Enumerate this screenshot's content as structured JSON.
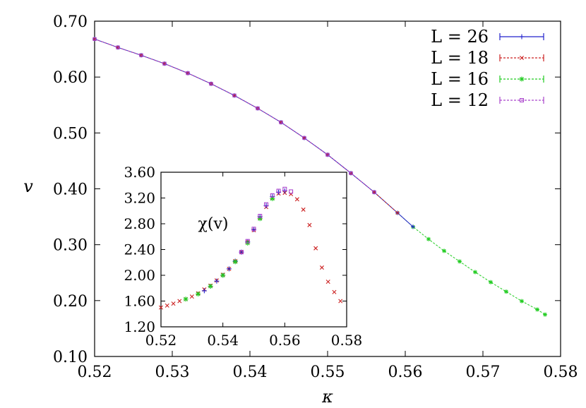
{
  "chart_data": [
    {
      "type": "line",
      "xlabel": "κ",
      "ylabel": "v",
      "xlim": [
        0.52,
        0.58
      ],
      "ylim": [
        0.1,
        0.7
      ],
      "xticks": [
        "0.52",
        "0.53",
        "0.54",
        "0.55",
        "0.56",
        "0.57",
        "0.58"
      ],
      "yticks": [
        "0.10",
        "0.20",
        "0.30",
        "0.40",
        "0.50",
        "0.60",
        "0.70"
      ],
      "grid": false,
      "legend": "top-right",
      "series": [
        {
          "name": "L = 26",
          "color": "#2222cc",
          "marker": "plus",
          "x": [
            0.52,
            0.523,
            0.526,
            0.529,
            0.532,
            0.535,
            0.538,
            0.541,
            0.544,
            0.547,
            0.55,
            0.553,
            0.556,
            0.559,
            0.561
          ],
          "y": [
            0.668,
            0.653,
            0.639,
            0.624,
            0.607,
            0.588,
            0.567,
            0.544,
            0.519,
            0.491,
            0.461,
            0.428,
            0.394,
            0.357,
            0.332
          ]
        },
        {
          "name": "L = 18",
          "color": "#cc2222",
          "marker": "cross",
          "x": [
            0.52,
            0.523,
            0.526,
            0.529,
            0.532,
            0.535,
            0.538,
            0.541,
            0.544,
            0.547,
            0.55,
            0.553,
            0.556,
            0.559
          ],
          "y": [
            0.668,
            0.653,
            0.639,
            0.624,
            0.607,
            0.588,
            0.567,
            0.544,
            0.519,
            0.491,
            0.461,
            0.428,
            0.394,
            0.357
          ]
        },
        {
          "name": "L = 16",
          "color": "#22cc22",
          "marker": "star",
          "x": [
            0.52,
            0.523,
            0.526,
            0.529,
            0.532,
            0.535,
            0.538,
            0.541,
            0.544,
            0.547,
            0.55,
            0.553,
            0.556,
            0.559,
            0.561,
            0.563,
            0.565,
            0.567,
            0.569,
            0.571,
            0.573,
            0.575,
            0.577,
            0.578
          ],
          "y": [
            0.668,
            0.653,
            0.639,
            0.624,
            0.607,
            0.588,
            0.567,
            0.544,
            0.519,
            0.491,
            0.461,
            0.428,
            0.394,
            0.357,
            0.332,
            0.31,
            0.289,
            0.27,
            0.251,
            0.233,
            0.216,
            0.199,
            0.184,
            0.175
          ]
        },
        {
          "name": "L = 12",
          "color": "#aa44cc",
          "marker": "square",
          "x": [
            0.52,
            0.523,
            0.526,
            0.529,
            0.532,
            0.535,
            0.538,
            0.541,
            0.544,
            0.547,
            0.55,
            0.553,
            0.556
          ],
          "y": [
            0.668,
            0.653,
            0.639,
            0.624,
            0.607,
            0.588,
            0.567,
            0.544,
            0.519,
            0.491,
            0.461,
            0.428,
            0.394
          ]
        }
      ]
    },
    {
      "type": "scatter",
      "ylabel": "χ(v)",
      "xlim": [
        0.52,
        0.58
      ],
      "ylim": [
        1.2,
        3.6
      ],
      "xticks": [
        "0.52",
        "0.54",
        "0.56",
        "0.58"
      ],
      "yticks": [
        "1.20",
        "1.60",
        "2.00",
        "2.40",
        "2.80",
        "3.20",
        "3.60"
      ],
      "series": [
        {
          "name": "L = 18",
          "color": "#cc2222",
          "marker": "cross",
          "x": [
            0.52,
            0.522,
            0.524,
            0.526,
            0.528,
            0.53,
            0.532,
            0.534,
            0.536,
            0.538,
            0.54,
            0.542,
            0.544,
            0.546,
            0.548,
            0.55,
            0.552,
            0.554,
            0.556,
            0.558,
            0.56,
            0.562,
            0.564,
            0.566,
            0.568,
            0.57,
            0.572,
            0.574,
            0.576,
            0.578
          ],
          "y": [
            1.5,
            1.53,
            1.56,
            1.6,
            1.63,
            1.67,
            1.72,
            1.78,
            1.84,
            1.92,
            2.01,
            2.1,
            2.22,
            2.36,
            2.52,
            2.7,
            2.89,
            3.06,
            3.2,
            3.27,
            3.28,
            3.26,
            3.18,
            3.02,
            2.78,
            2.42,
            2.12,
            1.9,
            1.74,
            1.6
          ]
        },
        {
          "name": "L = 26",
          "color": "#2222cc",
          "marker": "plus",
          "x": [
            0.534,
            0.536,
            0.538,
            0.54,
            0.542,
            0.544,
            0.546,
            0.548,
            0.55,
            0.552,
            0.554,
            0.556,
            0.558,
            0.56
          ],
          "y": [
            1.76,
            1.83,
            1.91,
            2.0,
            2.1,
            2.22,
            2.36,
            2.52,
            2.71,
            2.91,
            3.08,
            3.22,
            3.29,
            3.31
          ]
        },
        {
          "name": "L = 16",
          "color": "#22cc22",
          "marker": "star",
          "x": [
            0.528,
            0.532,
            0.536,
            0.54,
            0.544,
            0.548,
            0.552,
            0.556
          ],
          "y": [
            1.63,
            1.71,
            1.83,
            2.0,
            2.21,
            2.5,
            2.88,
            3.19
          ]
        },
        {
          "name": "L = 12",
          "color": "#aa44cc",
          "marker": "square",
          "x": [
            0.546,
            0.548,
            0.55,
            0.552,
            0.554,
            0.556,
            0.558,
            0.56,
            0.562
          ],
          "y": [
            2.36,
            2.53,
            2.72,
            2.92,
            3.1,
            3.24,
            3.31,
            3.34,
            3.3
          ]
        }
      ]
    }
  ]
}
